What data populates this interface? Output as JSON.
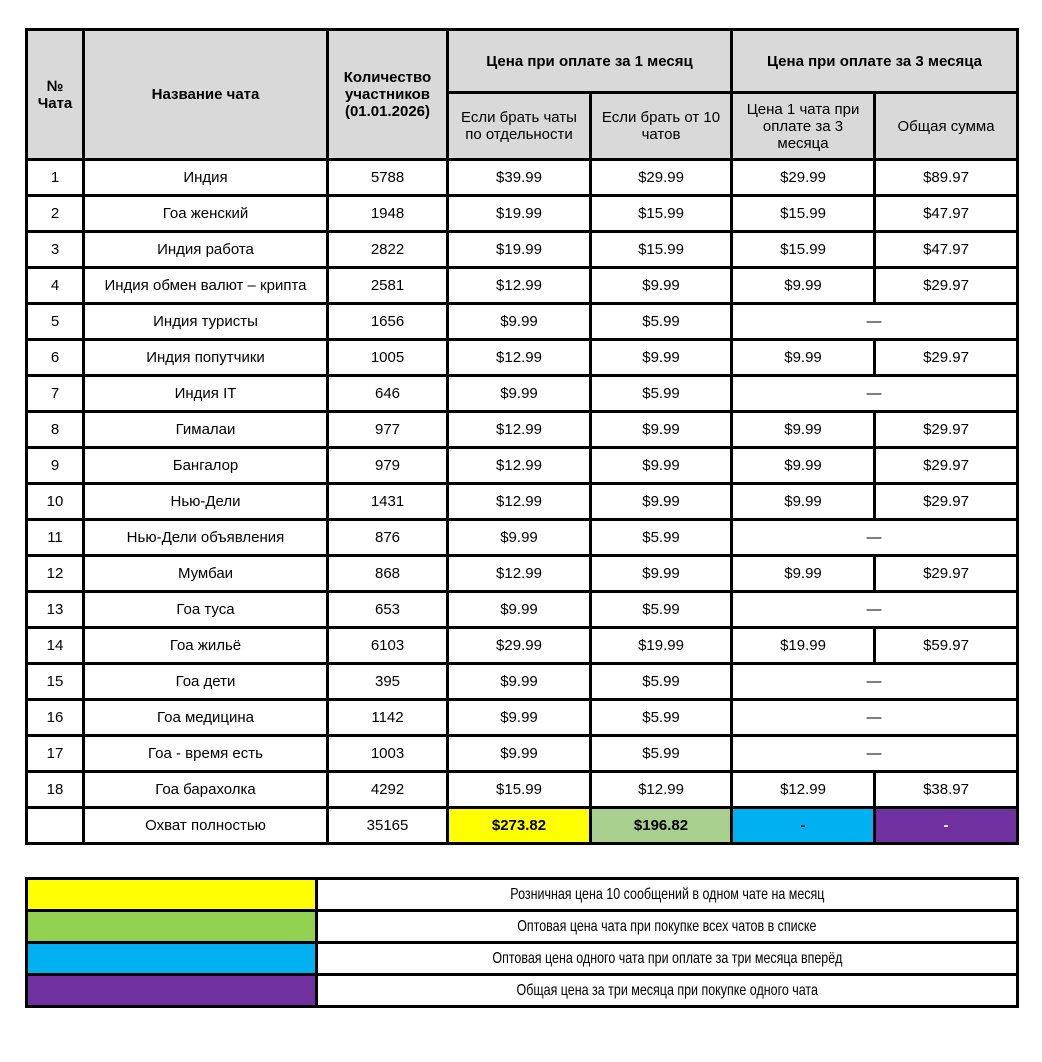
{
  "colors": {
    "header_bg": "#D9D9D9",
    "border": "#000000",
    "total_single_bg": "#FFFF00",
    "total_bulk_bg": "#A9D08E",
    "total_3m_bg": "#00B0F0",
    "total_3m_text": "#000000",
    "total_sum_bg": "#7030A0",
    "total_sum_text": "#FFFFFF",
    "legend_yellow": "#FFFF00",
    "legend_green": "#92D050",
    "legend_blue": "#00B0F0",
    "legend_purple": "#7030A0"
  },
  "table": {
    "headers": {
      "num": "№ Чата",
      "name": "Название чата",
      "members": "Количество участников (01.01.2026)",
      "group_1m": "Цена при оплате за 1 месяц",
      "group_3m": "Цена при оплате за 3 месяца",
      "sub_single": "Если брать чаты по отдельности",
      "sub_from10": "Если брать от 10 чатов",
      "sub_3m_single": "Цена 1 чата при оплате за 3 месяца",
      "sub_3m_total": "Общая сумма"
    },
    "dash": "—",
    "rows": [
      {
        "num": "1",
        "name": "Индия",
        "members": "5788",
        "single": "$39.99",
        "from10": "$29.99",
        "merged": false,
        "m3": "$29.99",
        "sum3": "$89.97"
      },
      {
        "num": "2",
        "name": "Гоа женский",
        "members": "1948",
        "single": "$19.99",
        "from10": "$15.99",
        "merged": false,
        "m3": "$15.99",
        "sum3": "$47.97"
      },
      {
        "num": "3",
        "name": "Индия работа",
        "members": "2822",
        "single": "$19.99",
        "from10": "$15.99",
        "merged": false,
        "m3": "$15.99",
        "sum3": "$47.97"
      },
      {
        "num": "4",
        "name": "Индия обмен валют – крипта",
        "members": "2581",
        "single": "$12.99",
        "from10": "$9.99",
        "merged": false,
        "m3": "$9.99",
        "sum3": "$29.97"
      },
      {
        "num": "5",
        "name": "Индия туристы",
        "members": "1656",
        "single": "$9.99",
        "from10": "$5.99",
        "merged": true
      },
      {
        "num": "6",
        "name": "Индия попутчики",
        "members": "1005",
        "single": "$12.99",
        "from10": "$9.99",
        "merged": false,
        "m3": "$9.99",
        "sum3": "$29.97"
      },
      {
        "num": "7",
        "name": "Индия IT",
        "members": "646",
        "single": "$9.99",
        "from10": "$5.99",
        "merged": true
      },
      {
        "num": "8",
        "name": "Гималаи",
        "members": "977",
        "single": "$12.99",
        "from10": "$9.99",
        "merged": false,
        "m3": "$9.99",
        "sum3": "$29.97"
      },
      {
        "num": "9",
        "name": "Бангалор",
        "members": "979",
        "single": "$12.99",
        "from10": "$9.99",
        "merged": false,
        "m3": "$9.99",
        "sum3": "$29.97"
      },
      {
        "num": "10",
        "name": "Нью-Дели",
        "members": "1431",
        "single": "$12.99",
        "from10": "$9.99",
        "merged": false,
        "m3": "$9.99",
        "sum3": "$29.97"
      },
      {
        "num": "11",
        "name": "Нью-Дели объявления",
        "members": "876",
        "single": "$9.99",
        "from10": "$5.99",
        "merged": true
      },
      {
        "num": "12",
        "name": "Мумбаи",
        "members": "868",
        "single": "$12.99",
        "from10": "$9.99",
        "merged": false,
        "m3": "$9.99",
        "sum3": "$29.97"
      },
      {
        "num": "13",
        "name": "Гоа туса",
        "members": "653",
        "single": "$9.99",
        "from10": "$5.99",
        "merged": true
      },
      {
        "num": "14",
        "name": "Гоа жильё",
        "members": "6103",
        "single": "$29.99",
        "from10": "$19.99",
        "merged": false,
        "m3": "$19.99",
        "sum3": "$59.97"
      },
      {
        "num": "15",
        "name": "Гоа дети",
        "members": "395",
        "single": "$9.99",
        "from10": "$5.99",
        "merged": true
      },
      {
        "num": "16",
        "name": "Гоа медицина",
        "members": "1142",
        "single": "$9.99",
        "from10": "$5.99",
        "merged": true
      },
      {
        "num": "17",
        "name": "Гоа - время есть",
        "members": "1003",
        "single": "$9.99",
        "from10": "$5.99",
        "merged": true
      },
      {
        "num": "18",
        "name": "Гоа барахолка",
        "members": "4292",
        "single": "$15.99",
        "from10": "$12.99",
        "merged": false,
        "m3": "$12.99",
        "sum3": "$38.97"
      }
    ],
    "total_row": {
      "num": "",
      "name": "Охват полностью",
      "members": "35165",
      "single": "$273.82",
      "from10": "$196.82",
      "m3": "-",
      "sum3": "-"
    }
  },
  "legend": {
    "items": [
      {
        "color_name": "yellow",
        "color": "#FFFF00",
        "text": "Розничная цена 10 сообщений в одном чате на месяц"
      },
      {
        "color_name": "green",
        "color": "#92D050",
        "text": "Оптовая цена чата при покупке всех чатов в списке"
      },
      {
        "color_name": "blue",
        "color": "#00B0F0",
        "text": "Оптовая цена одного чата при оплате за три месяца вперёд"
      },
      {
        "color_name": "purple",
        "color": "#7030A0",
        "text": "Общая цена за три месяца при покупке одного чата"
      }
    ]
  }
}
